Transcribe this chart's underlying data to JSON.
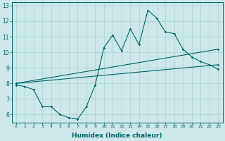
{
  "xlabel": "Humidex (Indice chaleur)",
  "background_color": "#cce8e8",
  "line_color": "#006666",
  "xlim": [
    -0.5,
    23.5
  ],
  "ylim": [
    5.5,
    13.2
  ],
  "yticks": [
    6,
    7,
    8,
    9,
    10,
    11,
    12,
    13
  ],
  "xticks": [
    0,
    1,
    2,
    3,
    4,
    5,
    6,
    7,
    8,
    9,
    10,
    11,
    12,
    13,
    14,
    15,
    16,
    17,
    18,
    19,
    20,
    21,
    22,
    23
  ],
  "series": {
    "line_main": {
      "x": [
        0,
        1,
        2,
        3,
        4,
        5,
        6,
        7,
        8,
        9,
        10,
        11,
        12,
        13,
        14,
        15,
        16,
        17,
        18,
        19,
        20,
        21,
        22,
        23
      ],
      "y": [
        7.9,
        7.8,
        7.6,
        6.5,
        6.5,
        6.0,
        5.8,
        5.7,
        6.5,
        7.9,
        10.3,
        11.1,
        10.1,
        11.5,
        10.5,
        12.7,
        12.2,
        11.3,
        11.2,
        10.2,
        9.7,
        9.4,
        9.2,
        8.9
      ]
    },
    "line_trend_upper": {
      "x": [
        0,
        23
      ],
      "y": [
        8.0,
        10.2
      ]
    },
    "line_trend_lower": {
      "x": [
        0,
        23
      ],
      "y": [
        8.0,
        9.2
      ]
    }
  }
}
